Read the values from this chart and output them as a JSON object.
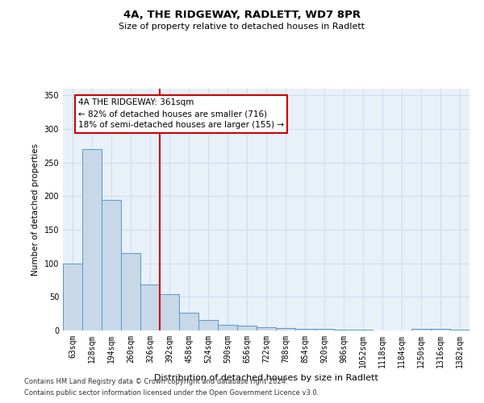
{
  "title1": "4A, THE RIDGEWAY, RADLETT, WD7 8PR",
  "title2": "Size of property relative to detached houses in Radlett",
  "xlabel": "Distribution of detached houses by size in Radlett",
  "ylabel": "Number of detached properties",
  "categories": [
    "63sqm",
    "128sqm",
    "194sqm",
    "260sqm",
    "326sqm",
    "392sqm",
    "458sqm",
    "524sqm",
    "590sqm",
    "656sqm",
    "722sqm",
    "788sqm",
    "854sqm",
    "920sqm",
    "986sqm",
    "1052sqm",
    "1118sqm",
    "1184sqm",
    "1250sqm",
    "1316sqm",
    "1382sqm"
  ],
  "values": [
    100,
    270,
    195,
    115,
    68,
    54,
    27,
    16,
    9,
    7,
    5,
    4,
    2,
    2,
    1,
    1,
    0,
    0,
    3,
    2,
    1
  ],
  "bar_color": "#c8d8e8",
  "bar_edge_color": "#5599cc",
  "vline_color": "#cc0000",
  "annotation_text": "4A THE RIDGEWAY: 361sqm\n← 82% of detached houses are smaller (716)\n18% of semi-detached houses are larger (155) →",
  "annotation_box_color": "#ffffff",
  "annotation_box_edge": "#cc0000",
  "grid_color": "#ccddee",
  "bg_color": "#e8f0f8",
  "footer1": "Contains HM Land Registry data © Crown copyright and database right 2024.",
  "footer2": "Contains public sector information licensed under the Open Government Licence v3.0.",
  "ylim": [
    0,
    360
  ],
  "yticks": [
    0,
    50,
    100,
    150,
    200,
    250,
    300,
    350
  ]
}
